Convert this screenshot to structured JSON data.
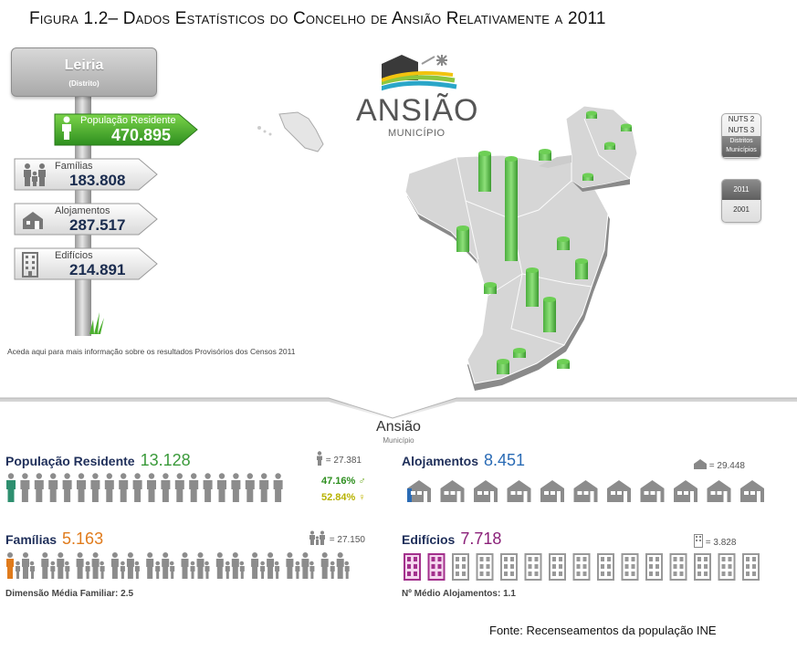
{
  "figure_title": "Figura 1.2– Dados Estatísticos do Concelho de Ansião Relativamente a 2011",
  "district": {
    "name": "Leiria",
    "sub": "(Distrito)"
  },
  "signs": [
    {
      "label": "População Residente",
      "value": "470.895",
      "icon": "person-icon"
    },
    {
      "label": "Famílias",
      "value": "183.808",
      "icon": "family-icon"
    },
    {
      "label": "Alojamentos",
      "value": "287.517",
      "icon": "house-icon"
    },
    {
      "label": "Edifícios",
      "value": "214.891",
      "icon": "building-icon"
    }
  ],
  "info_link": "Aceda aqui para mais informação sobre os resultados Provisórios dos Censos 2011",
  "logo": {
    "word": "ANSIÃO",
    "sub": "MUNICÍPIO"
  },
  "level_buttons": [
    {
      "label": "NUTS 2"
    },
    {
      "label": "NUTS 3"
    },
    {
      "label": "Distritos Municípios",
      "active": true
    }
  ],
  "year_buttons": [
    {
      "label": "2011",
      "active": true
    },
    {
      "label": "2001"
    }
  ],
  "municipality": {
    "name": "Ansião",
    "sub": "Município"
  },
  "population": {
    "title": "População Residente",
    "value": "13.128",
    "ref": "= 27.381",
    "male": "47.16%",
    "female": "52.84%",
    "icons": 20,
    "highlighted": 1
  },
  "families": {
    "title": "Famílias",
    "value": "5.163",
    "ref": "= 27.150",
    "footnote": "Dimensão Média Familiar: 2.5",
    "icons": 10,
    "highlighted": 1
  },
  "housing": {
    "title": "Alojamentos",
    "value": "8.451",
    "ref": "= 29.448",
    "icons": 11,
    "highlighted": 1
  },
  "buildings": {
    "title": "Edifícios",
    "value": "7.718",
    "ref": "= 3.828",
    "footnote": "Nº Médio Alojamentos: 1.1",
    "icons": 15,
    "highlighted": 2
  },
  "colors": {
    "green": "#2e9b2e",
    "blue_title": "#1f2f5a",
    "pop_value": "#3a9a3a",
    "fam_value": "#e07b1c",
    "housing_value": "#2a6bb5",
    "building_value": "#8a1f78",
    "icon_grey": "#8c8c8c"
  },
  "source": "Fonte: Recenseamentos da população INE"
}
